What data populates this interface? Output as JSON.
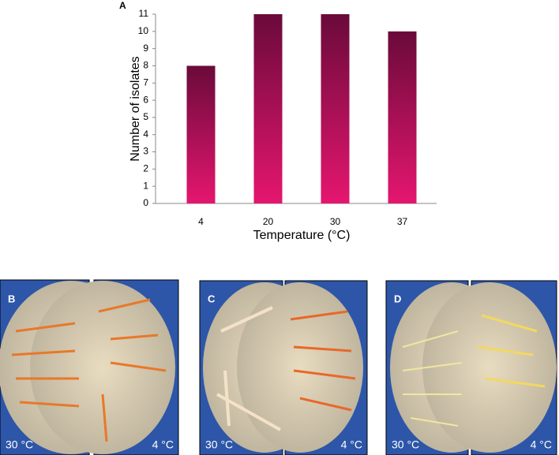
{
  "panel_label": "A",
  "chart_data": {
    "type": "bar",
    "x_label": "Temperature (°C)",
    "y_label": "Number of isolates",
    "categories": [
      "4",
      "20",
      "30",
      "37"
    ],
    "values": [
      8,
      11,
      11,
      10
    ],
    "gradient": [
      "#6a0a3a",
      "#e5166f"
    ],
    "ylim": [
      0,
      11
    ],
    "yticks": [
      0,
      1,
      2,
      3,
      4,
      5,
      6,
      7,
      8,
      9,
      10,
      11
    ],
    "grid": false
  },
  "photos": [
    {
      "label": "B",
      "left": "30 °C",
      "right": "4 °C"
    },
    {
      "label": "C",
      "left": "30 °C",
      "right": "4 °C"
    },
    {
      "label": "D",
      "left": "30 °C",
      "right": "4 °C"
    }
  ]
}
